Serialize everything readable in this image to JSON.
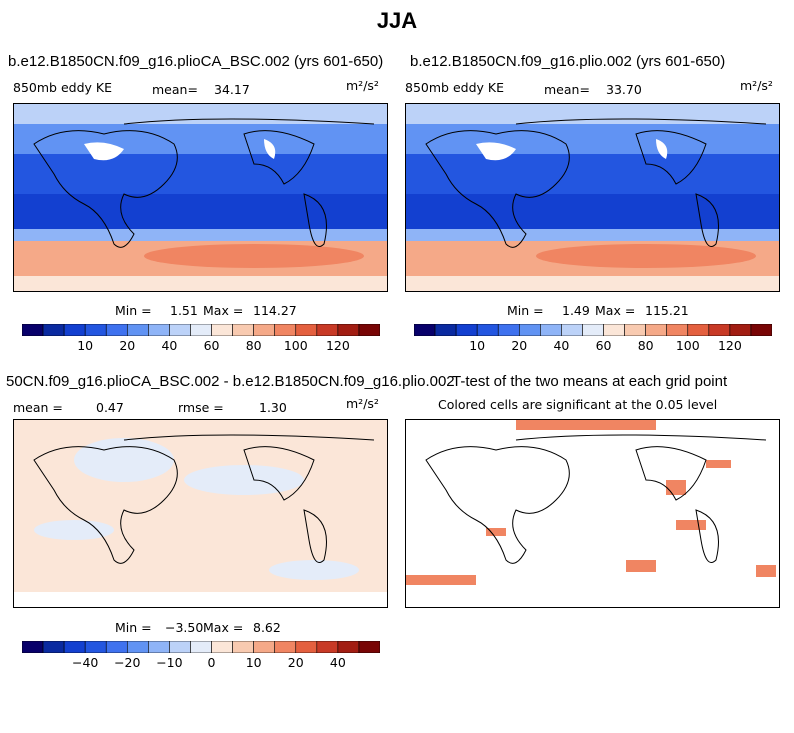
{
  "figure": {
    "title": "JJA"
  },
  "panels": [
    {
      "title": "b.e12.B1850CN.f09_g16.plioCA_BSC.002 (yrs 601-650)",
      "left_label": "850mb eddy KE",
      "mean_label": "mean=",
      "mean_value": "34.17",
      "units": "m²/s²",
      "min_label": "Min =",
      "min_value": "1.51",
      "max_label": "Max =",
      "max_value": "114.27"
    },
    {
      "title": "b.e12.B1850CN.f09_g16.plio.002 (yrs 601-650)",
      "left_label": "850mb eddy KE",
      "mean_label": "mean=",
      "mean_value": "33.70",
      "units": "m²/s²",
      "min_label": "Min =",
      "min_value": "1.49",
      "max_label": "Max =",
      "max_value": "115.21"
    },
    {
      "title": "50CN.f09_g16.plioCA_BSC.002 - b.e12.B1850CN.f09_g16.plio.002",
      "mean_label": "mean =",
      "mean_value": "0.47",
      "rmse_label": "rmse =",
      "rmse_value": "1.30",
      "units": "m²/s²",
      "min_label": "Min =",
      "min_value": "−3.50",
      "max_label": "Max =",
      "max_value": "8.62"
    },
    {
      "title": "T-test of the two means at each grid point",
      "subtitle": "Colored cells are significant at the 0.05 level"
    }
  ],
  "colorbars": {
    "abs": {
      "colors": [
        "#08006a",
        "#0a2aa0",
        "#1340d0",
        "#2356e0",
        "#3f72ef",
        "#6193f3",
        "#8fb4f7",
        "#bcd2f8",
        "#e4ecf9",
        "#fbe6d8",
        "#f8cab0",
        "#f5a988",
        "#f08562",
        "#e4603f",
        "#c83a26",
        "#a21d12",
        "#780505"
      ],
      "tick_labels": [
        "10",
        "20",
        "40",
        "60",
        "80",
        "100",
        "120"
      ]
    },
    "diff": {
      "colors": [
        "#08006a",
        "#0a2aa0",
        "#1340d0",
        "#2356e0",
        "#3f72ef",
        "#6193f3",
        "#8fb4f7",
        "#bcd2f8",
        "#e4ecf9",
        "#fbe6d8",
        "#f8cab0",
        "#f5a988",
        "#f08562",
        "#e4603f",
        "#c83a26",
        "#a21d12",
        "#780505"
      ],
      "tick_labels": [
        "−40",
        "−20",
        "−10",
        "0",
        "10",
        "20",
        "40"
      ]
    }
  },
  "chart_data": [
    {
      "type": "heatmap",
      "title": "b.e12.B1850CN.f09_g16.plioCA_BSC.002 (yrs 601-650)",
      "variable": "850mb eddy KE",
      "units": "m2/s2",
      "mean": 34.17,
      "min": 1.51,
      "max": 114.27,
      "colorbar_ticks": [
        10,
        20,
        40,
        60,
        80,
        100,
        120
      ]
    },
    {
      "type": "heatmap",
      "title": "b.e12.B1850CN.f09_g16.plio.002 (yrs 601-650)",
      "variable": "850mb eddy KE",
      "units": "m2/s2",
      "mean": 33.7,
      "min": 1.49,
      "max": 115.21,
      "colorbar_ticks": [
        10,
        20,
        40,
        60,
        80,
        100,
        120
      ]
    },
    {
      "type": "heatmap",
      "title": "50CN.f09_g16.plioCA_BSC.002 - b.e12.B1850CN.f09_g16.plio.002",
      "units": "m2/s2",
      "mean": 0.47,
      "rmse": 1.3,
      "min": -3.5,
      "max": 8.62,
      "colorbar_ticks": [
        -40,
        -20,
        -10,
        0,
        10,
        20,
        40
      ]
    },
    {
      "type": "heatmap",
      "title": "T-test of the two means at each grid point",
      "subtitle": "Colored cells are significant at the 0.05 level",
      "significance_level": 0.05
    }
  ]
}
